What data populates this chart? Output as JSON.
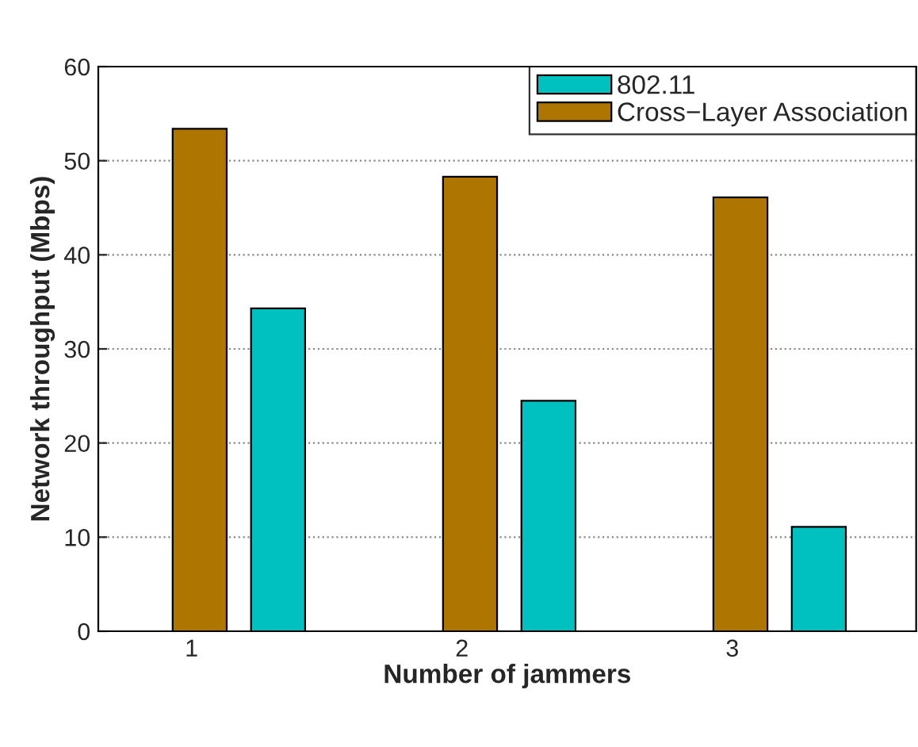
{
  "chart_data": {
    "type": "bar",
    "xlabel": "Number of jammers",
    "ylabel": "Network throughput (Mbps)",
    "categories": [
      "1",
      "2",
      "3"
    ],
    "series": [
      {
        "name": "802.11",
        "color": "#00c0c0",
        "values": [
          34.3,
          24.5,
          11.1
        ]
      },
      {
        "name": "Cross−Layer Association",
        "color": "#ae7500",
        "values": [
          53.4,
          48.3,
          46.1
        ]
      }
    ],
    "ylim": [
      0,
      60
    ],
    "yticks": [
      0,
      10,
      20,
      30,
      40,
      50,
      60
    ],
    "grid": "y",
    "legend": "top right"
  }
}
